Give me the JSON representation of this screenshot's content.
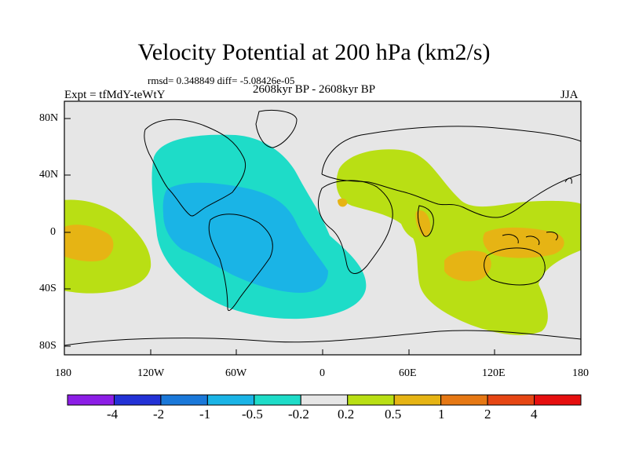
{
  "title": "Velocity Potential at 200 hPa (km2/s)",
  "stats": "rmsd= 0.348849 diff= -5.08426e-05",
  "experiment": "Expt = tfMdY-teWtY",
  "period": "2608kyr BP - 2608kyr BP",
  "season": "JJA",
  "axes": {
    "lat_labels": [
      "80N",
      "40N",
      "0",
      "40S",
      "80S"
    ],
    "lon_labels": [
      "180",
      "120W",
      "60W",
      "0",
      "60E",
      "120E",
      "180"
    ]
  },
  "colorbar": {
    "levels": [
      "-4",
      "-2",
      "-1",
      "-0.5",
      "-0.2",
      "0.2",
      "0.5",
      "1",
      "2",
      "4"
    ],
    "colors": [
      "#8c1ee6",
      "#2332d6",
      "#1a78d9",
      "#1ab4e6",
      "#1edcc8",
      "#e6e6e6",
      "#b9df14",
      "#e6b414",
      "#e67814",
      "#e64614",
      "#e60f0f"
    ]
  },
  "colors": {
    "land_outline": "#000000",
    "background": "#e6e6e6"
  }
}
